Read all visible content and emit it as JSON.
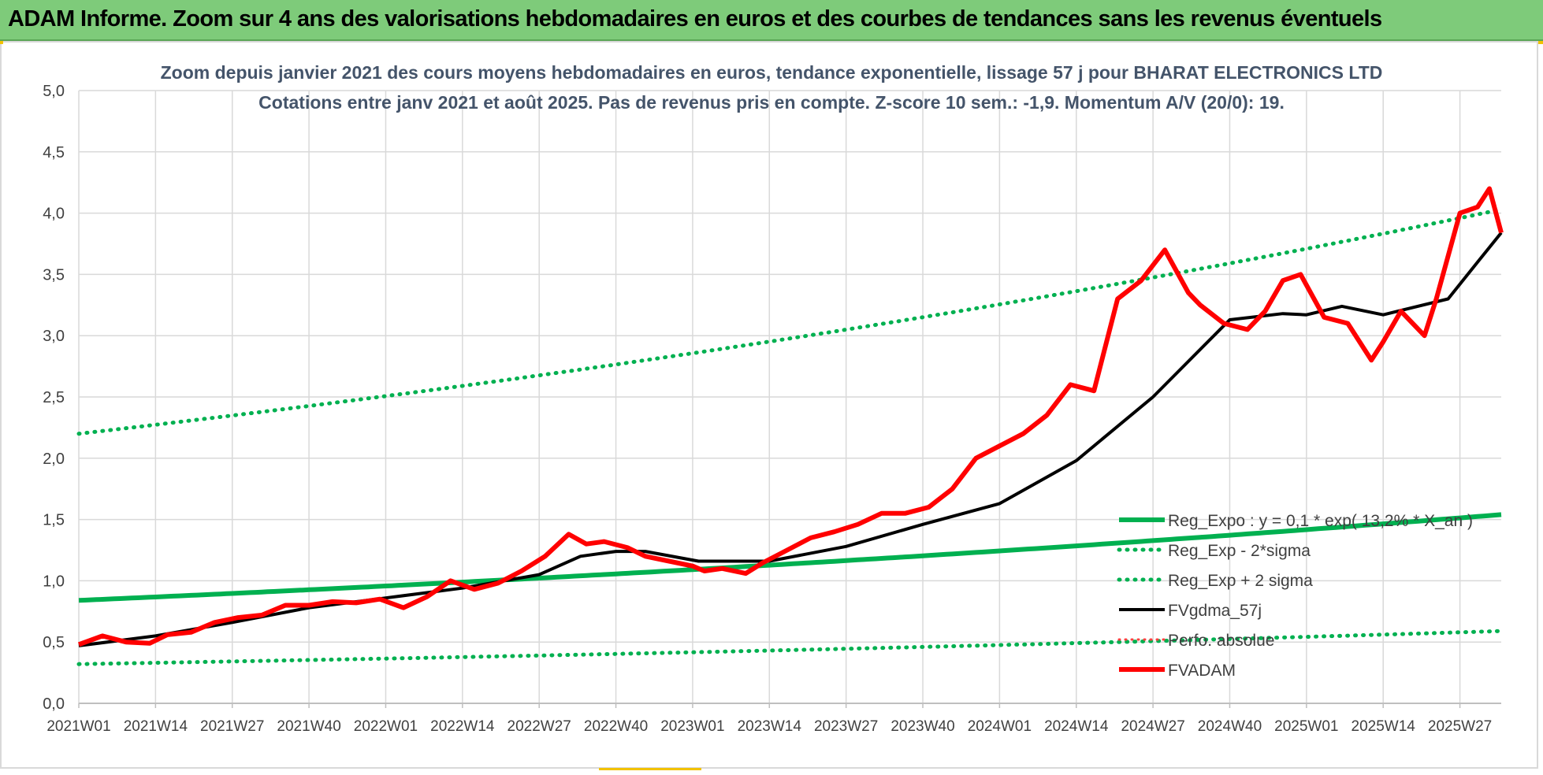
{
  "banner": {
    "title": "ADAM Informe. Zoom sur 4 ans des valorisations hebdomadaires en euros et des courbes de tendances sans les revenus éventuels"
  },
  "colors": {
    "banner": "#7ecb7a",
    "green": "#00b050",
    "black": "#000000",
    "red": "#ff0000",
    "dotted_green": "#00b050",
    "dotted_red": "#ff4040",
    "grid": "#d9d9d9",
    "text": "#404040",
    "title": "#44546a"
  },
  "chart_data": {
    "type": "line",
    "title": [
      "Zoom depuis janvier 2021 des cours moyens hebdomadaires en euros, tendance exponentielle, lissage 57 j pour BHARAT ELECTRONICS LTD",
      "Cotations entre janv 2021 et août 2025.  Pas de revenus pris en compte. Z-score 10 sem.: -1,9. Momentum A/V (20/0): 19."
    ],
    "x_tick_labels": [
      "2021W01",
      "2021W14",
      "2021W27",
      "2021W40",
      "2022W01",
      "2022W14",
      "2022W27",
      "2022W40",
      "2023W01",
      "2023W14",
      "2023W27",
      "2023W40",
      "2024W01",
      "2024W14",
      "2024W27",
      "2024W40",
      "2025W01",
      "2025W14",
      "2025W27"
    ],
    "y_tick_labels": [
      "0,0",
      "0,5",
      "1,0",
      "1,5",
      "2,0",
      "2,5",
      "3,0",
      "3,5",
      "4,0",
      "4,5",
      "5,0"
    ],
    "ylim": [
      0,
      5
    ],
    "x_range_weeks": [
      0,
      241
    ],
    "grid": true,
    "legend_position": "bottom-right",
    "series": [
      {
        "name": "Reg_Expo : y = 0,1 * exp( 13,2% *  X_an )",
        "style": "solid-green-thick",
        "color": "#00b050",
        "x": [
          0,
          241
        ],
        "y": [
          0.84,
          1.54
        ]
      },
      {
        "name": "Reg_Exp - 2*sigma",
        "style": "dotted-green",
        "color": "#00b050",
        "x": [
          0,
          241
        ],
        "y": [
          0.32,
          0.59
        ]
      },
      {
        "name": "Reg_Exp + 2 sigma",
        "style": "dotted-green",
        "color": "#00b050",
        "x": [
          0,
          241
        ],
        "y": [
          2.2,
          4.03
        ]
      },
      {
        "name": "FVgdma_57j",
        "style": "solid-black",
        "color": "#000000",
        "x": [
          0,
          13,
          26,
          39,
          52,
          65,
          78,
          85,
          91,
          96,
          105,
          117,
          130,
          143,
          156,
          169,
          182,
          195,
          204,
          208,
          214,
          221,
          232,
          237,
          241
        ],
        "y": [
          0.47,
          0.55,
          0.66,
          0.78,
          0.86,
          0.94,
          1.05,
          1.2,
          1.24,
          1.24,
          1.16,
          1.16,
          1.28,
          1.46,
          1.63,
          1.98,
          2.5,
          3.13,
          3.18,
          3.17,
          3.24,
          3.17,
          3.3,
          3.6,
          3.84
        ]
      },
      {
        "name": "Perfo. absolue",
        "style": "dotted-red",
        "color": "#ff4040",
        "x": [],
        "y": []
      },
      {
        "name": "FVADAM",
        "style": "solid-red-thick",
        "color": "#ff0000",
        "x": [
          0,
          4,
          8,
          12,
          15,
          19,
          23,
          27,
          31,
          35,
          39,
          43,
          47,
          51,
          55,
          59,
          63,
          67,
          71,
          75,
          79,
          83,
          86,
          89,
          93,
          96,
          100,
          104,
          106,
          109,
          113,
          116,
          120,
          124,
          128,
          132,
          136,
          140,
          144,
          148,
          152,
          156,
          160,
          164,
          168,
          172,
          176,
          180,
          184,
          188,
          190,
          194,
          198,
          201,
          204,
          207,
          211,
          215,
          219,
          221,
          224,
          228,
          230,
          234,
          237,
          239,
          241
        ],
        "y": [
          0.48,
          0.55,
          0.5,
          0.49,
          0.56,
          0.58,
          0.66,
          0.7,
          0.72,
          0.8,
          0.8,
          0.83,
          0.82,
          0.85,
          0.78,
          0.87,
          1.0,
          0.93,
          0.98,
          1.08,
          1.2,
          1.38,
          1.3,
          1.32,
          1.27,
          1.2,
          1.16,
          1.12,
          1.08,
          1.1,
          1.06,
          1.15,
          1.25,
          1.35,
          1.4,
          1.46,
          1.55,
          1.55,
          1.6,
          1.75,
          2.0,
          2.1,
          2.2,
          2.35,
          2.6,
          2.55,
          3.3,
          3.45,
          3.7,
          3.35,
          3.25,
          3.1,
          3.05,
          3.2,
          3.45,
          3.5,
          3.15,
          3.1,
          2.8,
          2.95,
          3.2,
          3.0,
          3.3,
          4.0,
          4.05,
          4.2,
          3.84
        ]
      }
    ]
  }
}
